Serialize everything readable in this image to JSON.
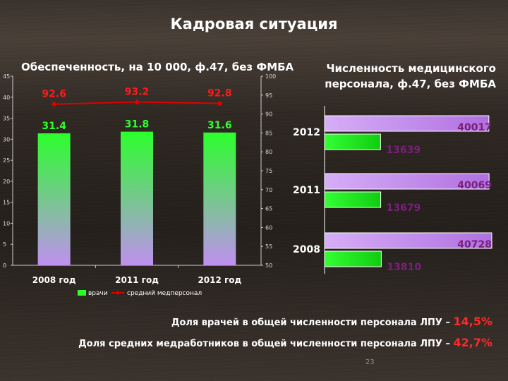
{
  "title": "Кадровая ситуация",
  "left_subtitle": "Обеспеченность, на 10 000, ф.47, без ФМБА",
  "right_subtitle": "Численность медицинского персонала, ф.47, без ФМБА",
  "footer": {
    "line1_text": "Доля врачей в общей численности персонала ЛПУ –",
    "line1_value": "14,5%",
    "line2_text": "Доля средних медработников в общей численности персонала ЛПУ –",
    "line2_value": "42,7%"
  },
  "page_number": "23",
  "colors": {
    "doctors_bar": "#2cff2c",
    "nurse_line": "#e00000",
    "hbar_purple": "#b070e0",
    "hbar_green": "#11cc11"
  },
  "chart_data": [
    {
      "type": "bar+line",
      "title": "Обеспеченность, на 10 000, ф.47, без ФМБА",
      "categories": [
        "2008 год",
        "2011 год",
        "2012 год"
      ],
      "series": [
        {
          "name": "врачи",
          "type": "bar",
          "axis": "left",
          "values": [
            31.4,
            31.8,
            31.6
          ],
          "labels": [
            "31.4",
            "31.8",
            "31.6"
          ]
        },
        {
          "name": "средний медперсонал",
          "type": "line",
          "axis": "right",
          "values": [
            92.6,
            93.2,
            92.8
          ],
          "labels": [
            "92.6",
            "93.2",
            "92.8"
          ]
        }
      ],
      "left_axis": {
        "ylim": [
          0,
          45
        ],
        "ticks": [
          0,
          5,
          10,
          15,
          20,
          25,
          30,
          35,
          40,
          45
        ]
      },
      "right_axis": {
        "ylim": [
          50,
          100
        ],
        "ticks": [
          50,
          55,
          60,
          65,
          70,
          75,
          80,
          85,
          90,
          95,
          100
        ]
      },
      "legend": "bottom"
    },
    {
      "type": "bar-horizontal",
      "title": "Численность медицинского персонала, ф.47, без ФМБА",
      "categories": [
        "2012",
        "2011",
        "2008"
      ],
      "series": [
        {
          "name": "purple",
          "values": [
            40017,
            40069,
            40728
          ],
          "labels": [
            "40017",
            "40069",
            "40728"
          ]
        },
        {
          "name": "green",
          "values": [
            13639,
            13679,
            13810
          ],
          "labels": [
            "13639",
            "13679",
            "13810"
          ]
        }
      ]
    }
  ]
}
